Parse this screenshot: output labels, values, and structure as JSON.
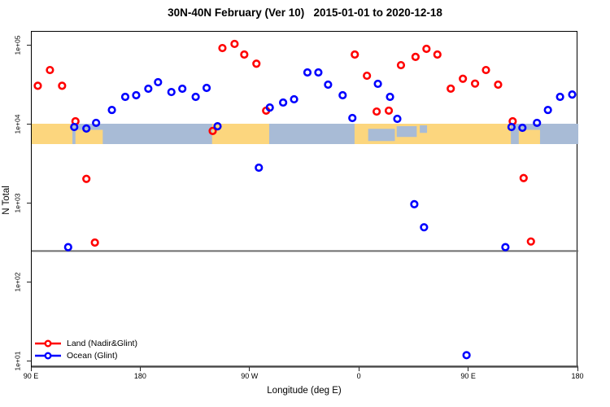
{
  "title": "30N-40N February (Ver 10)   2015-01-01 to 2020-12-18",
  "chart_data": {
    "type": "scatter",
    "title": "30N-40N February (Ver 10)   2015-01-01 to 2020-12-18",
    "xlabel": "Longitude (deg E)",
    "ylabel": "N Total",
    "grid": false,
    "x_axis": {
      "range_lon": [
        90,
        540
      ],
      "note": "longitude axis wraps eastward: 90E to 180 spanning 450 degrees",
      "ticks": [
        {
          "lon": 90,
          "label": "90 E"
        },
        {
          "lon": 180,
          "label": "180"
        },
        {
          "lon": 270,
          "label": "90 W"
        },
        {
          "lon": 360,
          "label": "0"
        },
        {
          "lon": 450,
          "label": "90 E"
        },
        {
          "lon": 540,
          "label": "180"
        }
      ]
    },
    "y_axis": {
      "scale": "log10",
      "range_log": [
        0.92,
        5.18
      ],
      "ticks": [
        {
          "log": 1,
          "label": "1e+01"
        },
        {
          "log": 2,
          "label": "1e+02"
        },
        {
          "log": 3,
          "label": "1e+03"
        },
        {
          "log": 4,
          "label": "1e+04"
        },
        {
          "log": 5,
          "label": "1e+05"
        }
      ]
    },
    "reference_lines": [
      {
        "n": 250,
        "color": "#6e6e6e",
        "width": 2
      },
      {
        "n": 8.6,
        "color": "#4d4d4d",
        "width": 2.5
      }
    ],
    "series": [
      {
        "name": "Land (Nadir&Glint)",
        "color": "#ff0000",
        "points": [
          [
            95,
            31000
          ],
          [
            105,
            49000
          ],
          [
            115,
            31000
          ],
          [
            126,
            11000
          ],
          [
            135,
            2050
          ],
          [
            142,
            320
          ],
          [
            239,
            8300
          ],
          [
            247,
            93000
          ],
          [
            257,
            105000
          ],
          [
            265,
            77000
          ],
          [
            275,
            59000
          ],
          [
            283,
            15000
          ],
          [
            356,
            77000
          ],
          [
            366,
            41500
          ],
          [
            374,
            14600
          ],
          [
            384,
            15000
          ],
          [
            394,
            56500
          ],
          [
            406,
            72000
          ],
          [
            415,
            91000
          ],
          [
            424,
            77000
          ],
          [
            435,
            28500
          ],
          [
            445,
            38000
          ],
          [
            455,
            33000
          ],
          [
            464,
            49000
          ],
          [
            474,
            32000
          ],
          [
            486,
            11000
          ],
          [
            495,
            2100
          ],
          [
            501,
            330
          ]
        ]
      },
      {
        "name": "Ocean (Glint)",
        "color": "#0000ff",
        "points": [
          [
            120,
            280
          ],
          [
            125,
            9300
          ],
          [
            135,
            8900
          ],
          [
            143,
            10500
          ],
          [
            156,
            15300
          ],
          [
            167,
            22400
          ],
          [
            176,
            23500
          ],
          [
            186,
            28400
          ],
          [
            194,
            34400
          ],
          [
            205,
            25800
          ],
          [
            214,
            28400
          ],
          [
            225,
            22400
          ],
          [
            234,
            29100
          ],
          [
            243,
            9500
          ],
          [
            277,
            2840
          ],
          [
            286,
            16400
          ],
          [
            297,
            19000
          ],
          [
            306,
            20900
          ],
          [
            317,
            45700
          ],
          [
            326,
            45700
          ],
          [
            334,
            32000
          ],
          [
            346,
            23500
          ],
          [
            354,
            12100
          ],
          [
            375,
            32800
          ],
          [
            385,
            22400
          ],
          [
            391,
            11800
          ],
          [
            405,
            980
          ],
          [
            413,
            500
          ],
          [
            448,
            12
          ],
          [
            480,
            280
          ],
          [
            485,
            9300
          ],
          [
            494,
            9100
          ],
          [
            506,
            10500
          ],
          [
            515,
            15300
          ],
          [
            525,
            22400
          ],
          [
            535,
            24000
          ]
        ]
      }
    ],
    "map_strip": {
      "description": "world-map band for latitudes 30N-40N drawn across the plot near N=1e+04",
      "land_color": "#fcd67e",
      "ocean_color": "#a8bbd6",
      "land_segments": [
        {
          "lon1": 90,
          "lon2": 123.5,
          "v1": 0,
          "v2": 1
        },
        {
          "lon1": 126,
          "lon2": 148.5,
          "v1": 0.3,
          "v2": 1
        },
        {
          "lon1": 238.5,
          "lon2": 285.5,
          "v1": 0,
          "v2": 1
        },
        {
          "lon1": 355.8,
          "lon2": 484.5,
          "v1": 0,
          "v2": 1
        },
        {
          "lon1": 491,
          "lon2": 508.5,
          "v1": 0.3,
          "v2": 1
        }
      ],
      "ocean_patches": [
        {
          "lon1": 367,
          "lon2": 389,
          "v1": 0.25,
          "v2": 0.85
        },
        {
          "lon1": 390.5,
          "lon2": 407,
          "v1": 0.12,
          "v2": 0.65
        },
        {
          "lon1": 409.5,
          "lon2": 415.5,
          "v1": 0.08,
          "v2": 0.45
        }
      ]
    }
  },
  "legend": {
    "items": [
      {
        "label": "Land (Nadir&Glint)",
        "color": "#ff0000"
      },
      {
        "label": "Ocean (Glint)",
        "color": "#0000ff"
      }
    ]
  }
}
